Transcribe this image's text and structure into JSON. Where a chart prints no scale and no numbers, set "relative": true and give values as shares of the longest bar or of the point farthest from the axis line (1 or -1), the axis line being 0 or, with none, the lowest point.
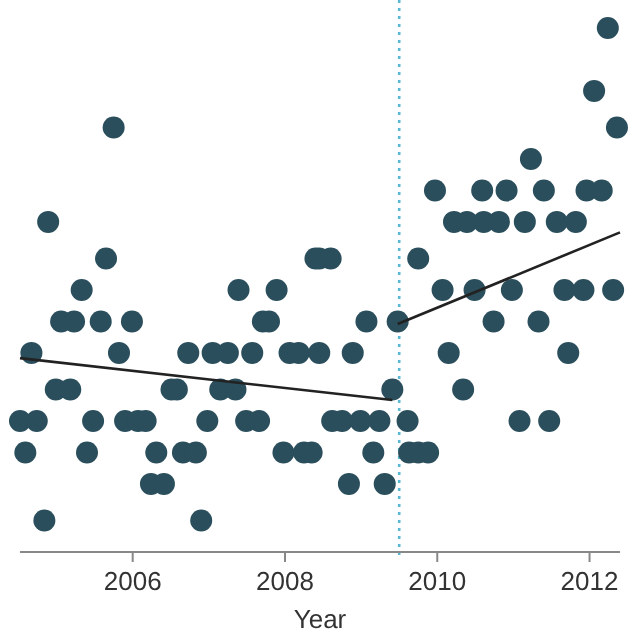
{
  "chart_data": {
    "type": "scatter",
    "relative": true,
    "xlabel": "Year",
    "xlim": [
      2004.52,
      2012.4
    ],
    "xticks": [
      2006,
      2008,
      2010,
      2012
    ],
    "ref_lines": [
      {
        "axis": "x",
        "value": 2009.5,
        "color": "#5bb8d4",
        "line_style": "dotted"
      }
    ],
    "series": [
      {
        "marker": "circle",
        "color": "#2a4e5c",
        "x": [
          2004.52,
          2004.59,
          2004.67,
          2004.74,
          2004.84,
          2004.89,
          2004.99,
          2005.06,
          2005.18,
          2005.23,
          2005.33,
          2005.4,
          2005.48,
          2005.58,
          2005.65,
          2005.75,
          2005.82,
          2005.9,
          2005.99,
          2006.07,
          2006.17,
          2006.24,
          2006.31,
          2006.41,
          2006.51,
          2006.58,
          2006.66,
          2006.73,
          2006.83,
          2006.9,
          2006.98,
          2007.05,
          2007.15,
          2007.25,
          2007.35,
          2007.39,
          2007.49,
          2007.57,
          2007.66,
          2007.71,
          2007.79,
          2007.89,
          2007.98,
          2008.06,
          2008.18,
          2008.25,
          2008.35,
          2008.4,
          2008.45,
          2008.45,
          2008.6,
          2008.62,
          2008.75,
          2008.84,
          2008.89,
          2008.99,
          2009.07,
          2009.16,
          2009.24,
          2009.31,
          2009.41,
          2009.48,
          2009.61,
          2009.63,
          2009.75,
          2009.75,
          2009.88,
          2009.97,
          2010.07,
          2010.15,
          2010.22,
          2010.34,
          2010.39,
          2010.49,
          2010.59,
          2010.61,
          2010.74,
          2010.81,
          2010.91,
          2010.98,
          2011.08,
          2011.15,
          2011.23,
          2011.33,
          2011.4,
          2011.47,
          2011.57,
          2011.67,
          2011.72,
          2011.82,
          2011.92,
          2011.96,
          2012.06,
          2012.16,
          2012.24,
          2012.31,
          2012.36
        ],
        "values": [
          0.25,
          0.19,
          0.38,
          0.25,
          0.06,
          0.63,
          0.31,
          0.44,
          0.31,
          0.44,
          0.5,
          0.19,
          0.25,
          0.44,
          0.56,
          0.81,
          0.38,
          0.25,
          0.44,
          0.25,
          0.25,
          0.13,
          0.19,
          0.13,
          0.31,
          0.31,
          0.19,
          0.38,
          0.19,
          0.06,
          0.25,
          0.38,
          0.31,
          0.38,
          0.31,
          0.5,
          0.25,
          0.38,
          0.25,
          0.44,
          0.44,
          0.5,
          0.19,
          0.38,
          0.38,
          0.19,
          0.19,
          0.56,
          0.38,
          0.56,
          0.56,
          0.25,
          0.25,
          0.13,
          0.38,
          0.25,
          0.44,
          0.19,
          0.25,
          0.13,
          0.31,
          0.44,
          0.25,
          0.19,
          0.19,
          0.56,
          0.19,
          0.69,
          0.5,
          0.38,
          0.63,
          0.31,
          0.63,
          0.5,
          0.69,
          0.63,
          0.44,
          0.63,
          0.69,
          0.5,
          0.25,
          0.63,
          0.75,
          0.44,
          0.69,
          0.25,
          0.63,
          0.5,
          0.38,
          0.63,
          0.5,
          0.69,
          0.88,
          0.69,
          1,
          0.5,
          0.81
        ]
      },
      {
        "type": "line",
        "color": "#222222",
        "x": [
          2004.52,
          2009.41
        ],
        "values": [
          0.37,
          0.29
        ]
      },
      {
        "type": "line",
        "color": "#222222",
        "x": [
          2009.48,
          2012.4
        ],
        "values": [
          0.435,
          0.61
        ]
      }
    ]
  }
}
